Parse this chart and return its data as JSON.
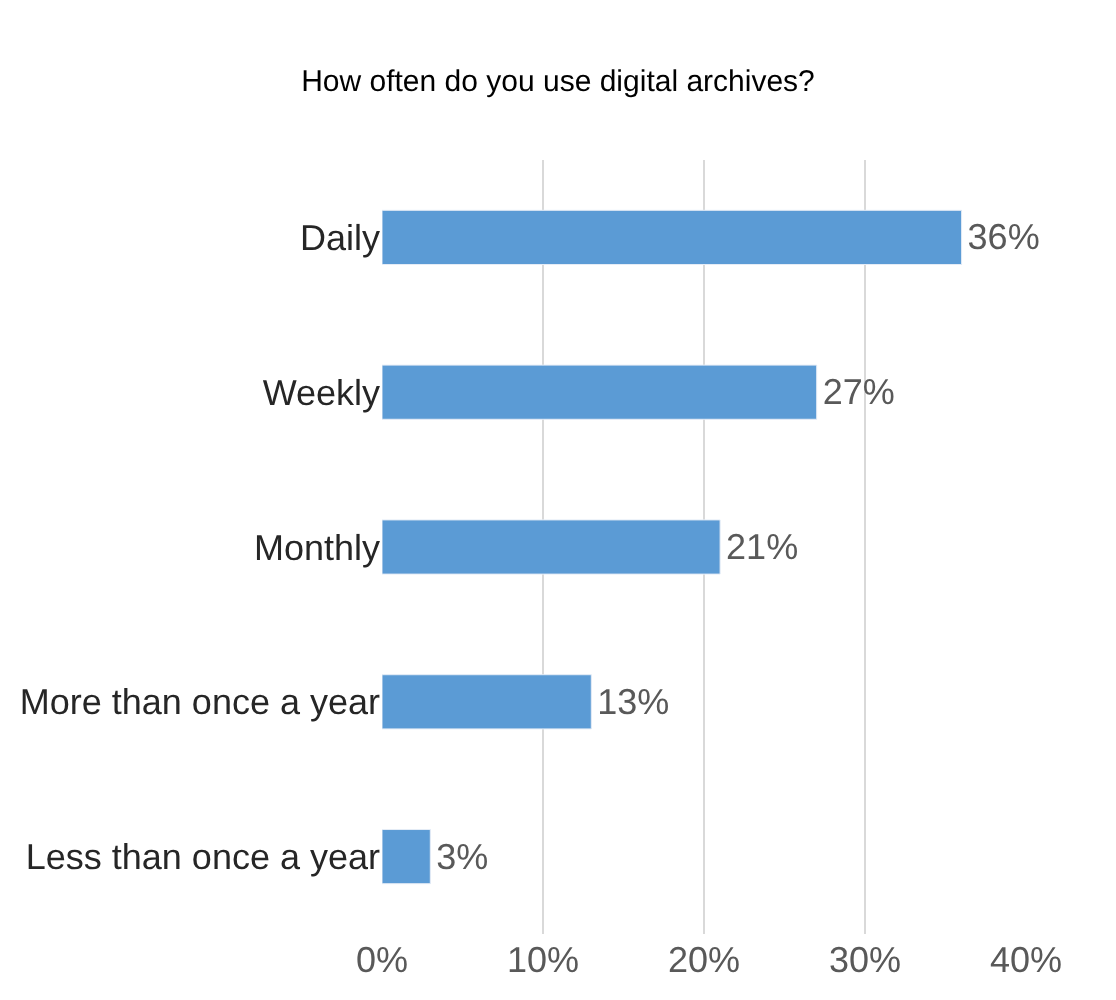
{
  "chart_data": {
    "type": "bar",
    "orientation": "horizontal",
    "title": "How often do you use digital archives?",
    "categories": [
      "Daily",
      "Weekly",
      "Monthly",
      "More than once a year",
      "Less than once a year"
    ],
    "values": [
      36,
      27,
      21,
      13,
      3
    ],
    "value_labels": [
      "36%",
      "27%",
      "21%",
      "13%",
      "3%"
    ],
    "color": "#5b9bd5",
    "xlim": [
      0,
      40
    ],
    "xticks": [
      {
        "value": 0,
        "label": "0%"
      },
      {
        "value": 10,
        "label": "10%"
      },
      {
        "value": 20,
        "label": "20%"
      },
      {
        "value": 30,
        "label": "30%"
      },
      {
        "value": 40,
        "label": "40%"
      }
    ],
    "grid": "x",
    "legend": false
  }
}
